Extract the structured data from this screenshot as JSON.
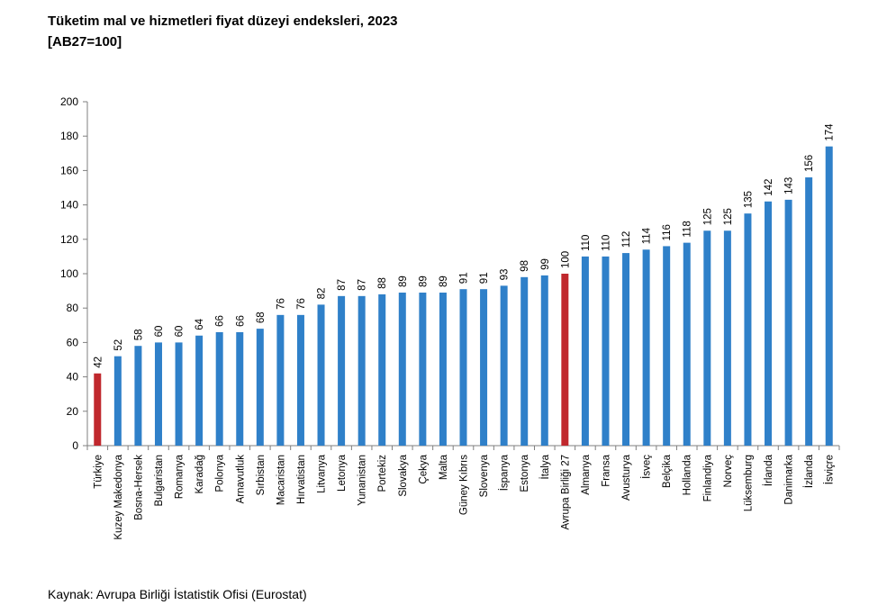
{
  "source": "Kaynak: Avrupa Birliği İstatistik Ofisi (Eurostat)",
  "colors": {
    "default": "#2f80c9",
    "highlight": "#c0282d",
    "axis": "#7f7f7f"
  },
  "chart_data": {
    "type": "bar",
    "title": "Tüketim mal ve hizmetleri fiyat düzeyi endeksleri, 2023",
    "subtitle": "[AB27=100]",
    "xlabel": "",
    "ylabel": "",
    "ylim": [
      0,
      200
    ],
    "yticks": [
      0,
      20,
      40,
      60,
      80,
      100,
      120,
      140,
      160,
      180,
      200
    ],
    "grid": false,
    "legend": "none",
    "highlighted": [
      "Türkiye",
      "Avrupa Birliği 27"
    ],
    "categories": [
      "Türkiye",
      "Kuzey Makedonya",
      "Bosna-Hersek",
      "Bulgaristan",
      "Romanya",
      "Karadağ",
      "Polonya",
      "Arnavutluk",
      "Sırbistan",
      "Macaristan",
      "Hırvatistan",
      "Litvanya",
      "Letonya",
      "Yunanistan",
      "Portekiz",
      "Slovakya",
      "Çekya",
      "Malta",
      "Güney Kıbrıs",
      "Slovenya",
      "İspanya",
      "Estonya",
      "İtalya",
      "Avrupa Birliği 27",
      "Almanya",
      "Fransa",
      "Avusturya",
      "İsveç",
      "Belçika",
      "Hollanda",
      "Finlandiya",
      "Norveç",
      "Lüksemburg",
      "İrlanda",
      "Danimarka",
      "İzlanda",
      "İsviçre"
    ],
    "values": [
      42,
      52,
      58,
      60,
      60,
      64,
      66,
      66,
      68,
      76,
      76,
      82,
      87,
      87,
      88,
      89,
      89,
      89,
      91,
      91,
      93,
      98,
      99,
      100,
      110,
      110,
      112,
      114,
      116,
      118,
      125,
      125,
      135,
      142,
      143,
      156,
      174
    ]
  }
}
